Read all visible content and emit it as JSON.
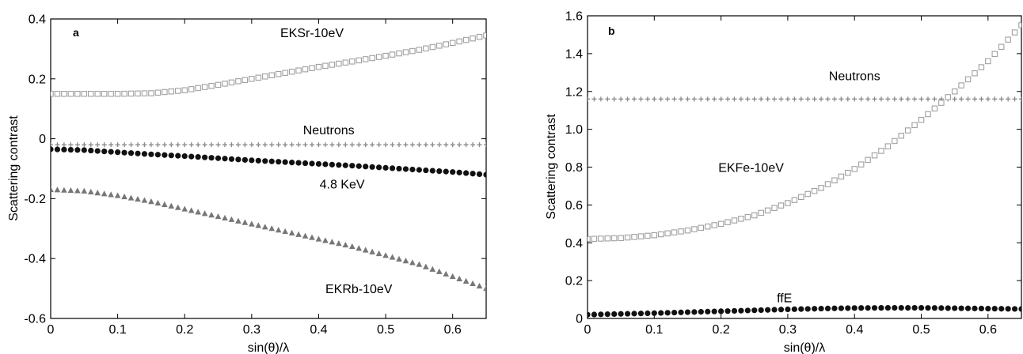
{
  "chart_data": [
    {
      "type": "scatter",
      "panel_label": "a",
      "xlabel": "sin(θ)/λ",
      "ylabel": "Scattering contrast",
      "xlim": [
        0,
        0.65
      ],
      "ylim": [
        -0.6,
        0.4
      ],
      "x_ticks": [
        0,
        0.1,
        0.2,
        0.3,
        0.4,
        0.5,
        0.6
      ],
      "x_tick_labels": [
        "0",
        "0.1",
        "0.2",
        "0.3",
        "0.4",
        "0.5",
        "0.6"
      ],
      "y_ticks": [
        -0.6,
        -0.4,
        -0.2,
        0,
        0.2,
        0.4
      ],
      "y_tick_labels": [
        "-0.6",
        "-0.4",
        "-0.2",
        "0",
        "0.2",
        "0.4"
      ],
      "grid": false,
      "series": [
        {
          "name": "EKSr-10eV",
          "marker": "square-open",
          "color": "#a0a0a0",
          "x": [
            0,
            0.05,
            0.1,
            0.15,
            0.2,
            0.25,
            0.3,
            0.35,
            0.4,
            0.45,
            0.5,
            0.55,
            0.6,
            0.65
          ],
          "y": [
            0.15,
            0.15,
            0.15,
            0.152,
            0.162,
            0.18,
            0.2,
            0.22,
            0.24,
            0.258,
            0.277,
            0.297,
            0.32,
            0.345
          ]
        },
        {
          "name": "Neutrons",
          "marker": "plus",
          "color": "#8a8a8a",
          "x": [
            0,
            0.05,
            0.1,
            0.15,
            0.2,
            0.25,
            0.3,
            0.35,
            0.4,
            0.45,
            0.5,
            0.55,
            0.6,
            0.65
          ],
          "y": [
            -0.02,
            -0.02,
            -0.02,
            -0.02,
            -0.02,
            -0.02,
            -0.02,
            -0.02,
            -0.02,
            -0.02,
            -0.02,
            -0.02,
            -0.02,
            -0.02
          ]
        },
        {
          "name": "4.8 KeV",
          "marker": "circle-filled",
          "color": "#111111",
          "x": [
            0,
            0.05,
            0.1,
            0.15,
            0.2,
            0.25,
            0.3,
            0.35,
            0.4,
            0.45,
            0.5,
            0.55,
            0.6,
            0.65
          ],
          "y": [
            -0.035,
            -0.038,
            -0.045,
            -0.052,
            -0.058,
            -0.065,
            -0.072,
            -0.078,
            -0.084,
            -0.09,
            -0.097,
            -0.104,
            -0.111,
            -0.12
          ]
        },
        {
          "name": "EKRb-10eV",
          "marker": "triangle-filled",
          "color": "#777777",
          "x": [
            0,
            0.05,
            0.1,
            0.15,
            0.2,
            0.25,
            0.3,
            0.35,
            0.4,
            0.45,
            0.5,
            0.55,
            0.6,
            0.65
          ],
          "y": [
            -0.17,
            -0.175,
            -0.19,
            -0.21,
            -0.235,
            -0.26,
            -0.285,
            -0.31,
            -0.335,
            -0.36,
            -0.39,
            -0.42,
            -0.46,
            -0.5
          ]
        }
      ],
      "annotations": [
        {
          "text": "EKSr-10eV",
          "x": 0.39,
          "y": 0.355
        },
        {
          "text": "Neutrons",
          "x": 0.415,
          "y": 0.03
        },
        {
          "text": "4.8 KeV",
          "x": 0.435,
          "y": -0.15
        },
        {
          "text": "EKRb-10eV",
          "x": 0.46,
          "y": -0.5
        }
      ]
    },
    {
      "type": "scatter",
      "panel_label": "b",
      "xlabel": "sin(θ)/λ",
      "ylabel": "Scattering contrast",
      "xlim": [
        0,
        0.65
      ],
      "ylim": [
        0,
        1.6
      ],
      "x_ticks": [
        0,
        0.1,
        0.2,
        0.3,
        0.4,
        0.5,
        0.6
      ],
      "x_tick_labels": [
        "0",
        "0.1",
        "0.2",
        "0.3",
        "0.4",
        "0.5",
        "0.6"
      ],
      "y_ticks": [
        0,
        0.2,
        0.4,
        0.6,
        0.8,
        1.0,
        1.2,
        1.4,
        1.6
      ],
      "y_tick_labels": [
        "0",
        "0.2",
        "0.4",
        "0.6",
        "0.8",
        "1.0",
        "1.2",
        "1.4",
        "1.6"
      ],
      "grid": false,
      "series": [
        {
          "name": "Neutrons",
          "marker": "plus",
          "color": "#8a8a8a",
          "x": [
            0,
            0.05,
            0.1,
            0.15,
            0.2,
            0.25,
            0.3,
            0.35,
            0.4,
            0.45,
            0.5,
            0.55,
            0.6,
            0.65
          ],
          "y": [
            1.16,
            1.16,
            1.16,
            1.16,
            1.16,
            1.16,
            1.16,
            1.16,
            1.16,
            1.16,
            1.16,
            1.16,
            1.16,
            1.16
          ]
        },
        {
          "name": "EKFe-10eV",
          "marker": "square-open",
          "color": "#a0a0a0",
          "x": [
            0,
            0.05,
            0.1,
            0.15,
            0.2,
            0.25,
            0.3,
            0.35,
            0.4,
            0.45,
            0.5,
            0.55,
            0.6,
            0.65
          ],
          "y": [
            0.42,
            0.425,
            0.44,
            0.465,
            0.5,
            0.545,
            0.61,
            0.69,
            0.79,
            0.91,
            1.05,
            1.2,
            1.36,
            1.55
          ]
        },
        {
          "name": "ffE",
          "marker": "circle-filled",
          "color": "#111111",
          "x": [
            0,
            0.05,
            0.1,
            0.15,
            0.2,
            0.25,
            0.3,
            0.35,
            0.4,
            0.45,
            0.5,
            0.55,
            0.6,
            0.65
          ],
          "y": [
            0.02,
            0.024,
            0.028,
            0.033,
            0.038,
            0.043,
            0.048,
            0.052,
            0.055,
            0.056,
            0.056,
            0.054,
            0.052,
            0.05
          ]
        }
      ],
      "annotations": [
        {
          "text": "Neutrons",
          "x": 0.4,
          "y": 1.285
        },
        {
          "text": "EKFe-10eV",
          "x": 0.245,
          "y": 0.8
        },
        {
          "text": "ffE",
          "x": 0.295,
          "y": 0.11
        }
      ]
    }
  ]
}
